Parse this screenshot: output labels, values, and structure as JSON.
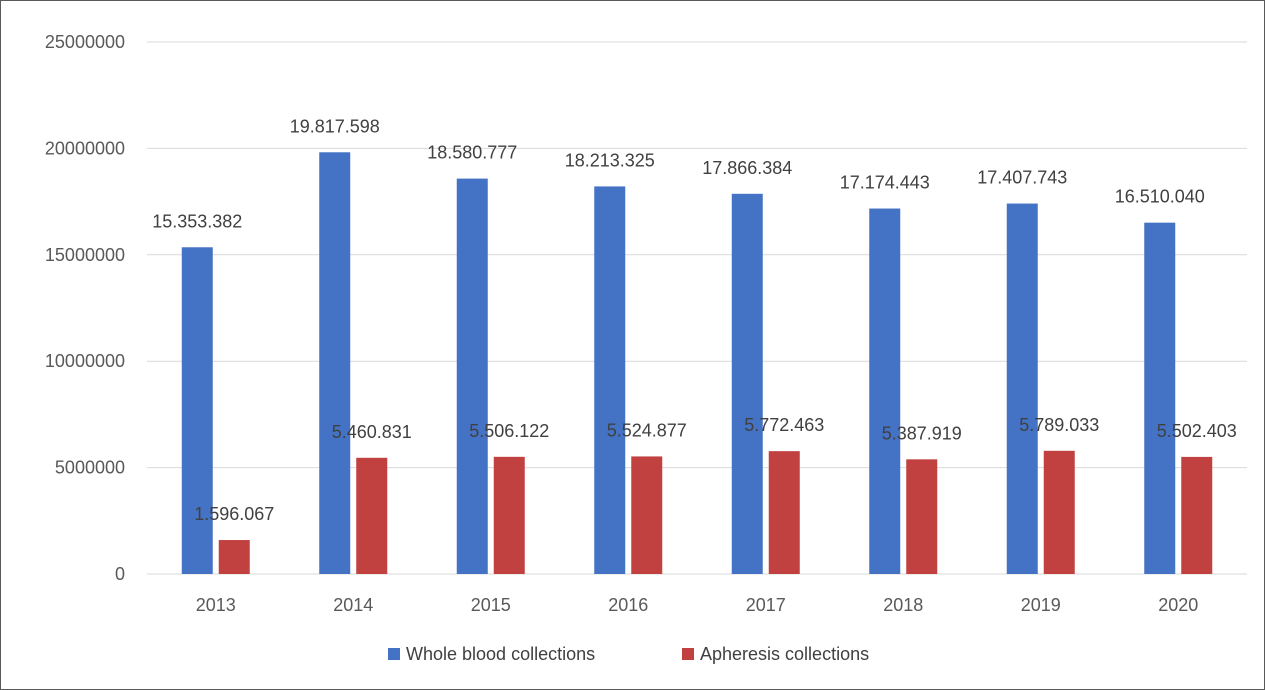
{
  "chart_data": {
    "type": "bar",
    "categories": [
      "2013",
      "2014",
      "2015",
      "2016",
      "2017",
      "2018",
      "2019",
      "2020"
    ],
    "series": [
      {
        "name": "Whole blood collections",
        "color": "#4472C4",
        "values": [
          15353382,
          19817598,
          18580777,
          18213325,
          17866384,
          17174443,
          17407743,
          16510040
        ],
        "labels": [
          "15.353.382",
          "19.817.598",
          "18.580.777",
          "18.213.325",
          "17.866.384",
          "17.174.443",
          "17.407.743",
          "16.510.040"
        ]
      },
      {
        "name": "Apheresis collections",
        "color": "#C0413F",
        "values": [
          1596067,
          5460831,
          5506122,
          5524877,
          5772463,
          5387919,
          5789033,
          5502403
        ],
        "labels": [
          "1.596.067",
          "5.460.831",
          "5.506.122",
          "5.524.877",
          "5.772.463",
          "5.387.919",
          "5.789.033",
          "5.502.403"
        ]
      }
    ],
    "y_ticks": [
      "0",
      "5000000",
      "10000000",
      "15000000",
      "20000000",
      "25000000"
    ],
    "ylim": [
      0,
      25000000
    ],
    "grid": true,
    "legend_position": "bottom"
  }
}
